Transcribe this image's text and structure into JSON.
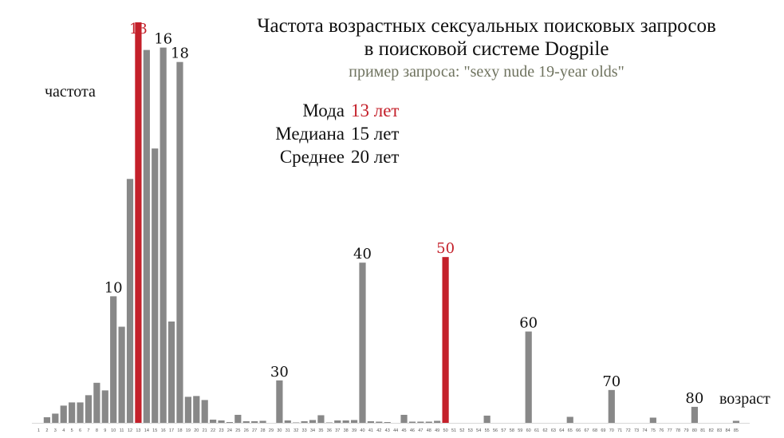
{
  "title_lines": [
    "Частота возрастных сексуальных поисковых запросов",
    "в поисковой системе Dogpile"
  ],
  "subtitle": "пример запроса: \"sexy nude 19-year olds\"",
  "stats": [
    {
      "label": "Мода",
      "value": "13 лет",
      "highlight": true
    },
    {
      "label": "Медиана",
      "value": "15 лет",
      "highlight": false
    },
    {
      "label": "Среднее",
      "value": "20 лет",
      "highlight": false
    }
  ],
  "colors": {
    "bar": "#888888",
    "highlight": "#c4202a",
    "text": "#111111",
    "subtitle": "#6f735f"
  },
  "chart_data": {
    "type": "bar",
    "title": "Частота возрастных сексуальных поисковых запросов в поисковой системе Dogpile",
    "xlabel": "возраст",
    "ylabel": "частота",
    "grid": false,
    "ylim": [
      0,
      100
    ],
    "categories": [
      "1",
      "2",
      "3",
      "4",
      "5",
      "6",
      "7",
      "8",
      "9",
      "10",
      "11",
      "12",
      "13",
      "14",
      "15",
      "16",
      "17",
      "18",
      "19",
      "20",
      "21",
      "22",
      "23",
      "24",
      "25",
      "26",
      "27",
      "28",
      "29",
      "30",
      "31",
      "32",
      "33",
      "34",
      "35",
      "36",
      "37",
      "38",
      "39",
      "40",
      "41",
      "42",
      "43",
      "44",
      "45",
      "46",
      "47",
      "48",
      "49",
      "50",
      "51",
      "52",
      "53",
      "54",
      "55",
      "56",
      "57",
      "58",
      "59",
      "60",
      "61",
      "62",
      "63",
      "64",
      "65",
      "66",
      "67",
      "68",
      "69",
      "70",
      "71",
      "72",
      "73",
      "74",
      "75",
      "76",
      "77",
      "78",
      "79",
      "80",
      "81",
      "82",
      "83",
      "84",
      "85"
    ],
    "values": [
      0,
      1.4,
      2.3,
      4.3,
      5.1,
      5.1,
      6.9,
      10,
      8.1,
      31.6,
      24,
      60.9,
      100,
      93.1,
      68.5,
      93.7,
      25.3,
      90.1,
      6.5,
      6.7,
      5.7,
      0.8,
      0.6,
      0.2,
      2,
      0.4,
      0.4,
      0.5,
      0,
      10.6,
      0.6,
      0.1,
      0.4,
      0.7,
      1.9,
      0.1,
      0.6,
      0.6,
      0.7,
      40,
      0.4,
      0.3,
      0.2,
      0,
      2,
      0.3,
      0.3,
      0.3,
      0.5,
      41.4,
      0,
      0,
      0,
      0,
      1.8,
      0,
      0,
      0,
      0,
      22.8,
      0,
      0,
      0,
      0,
      1.5,
      0,
      0,
      0,
      0,
      8.2,
      0,
      0,
      0,
      0,
      1.3,
      0,
      0,
      0,
      0,
      4,
      0,
      0,
      0,
      0,
      0.5
    ],
    "highlighted": [
      "13",
      "50"
    ],
    "annotations": [
      {
        "x": "10",
        "text": "10"
      },
      {
        "x": "13",
        "text": "13"
      },
      {
        "x": "16",
        "text": "16"
      },
      {
        "x": "18",
        "text": "18"
      },
      {
        "x": "30",
        "text": "30"
      },
      {
        "x": "40",
        "text": "40"
      },
      {
        "x": "50",
        "text": "50"
      },
      {
        "x": "60",
        "text": "60"
      },
      {
        "x": "70",
        "text": "70"
      },
      {
        "x": "80",
        "text": "80"
      }
    ]
  }
}
